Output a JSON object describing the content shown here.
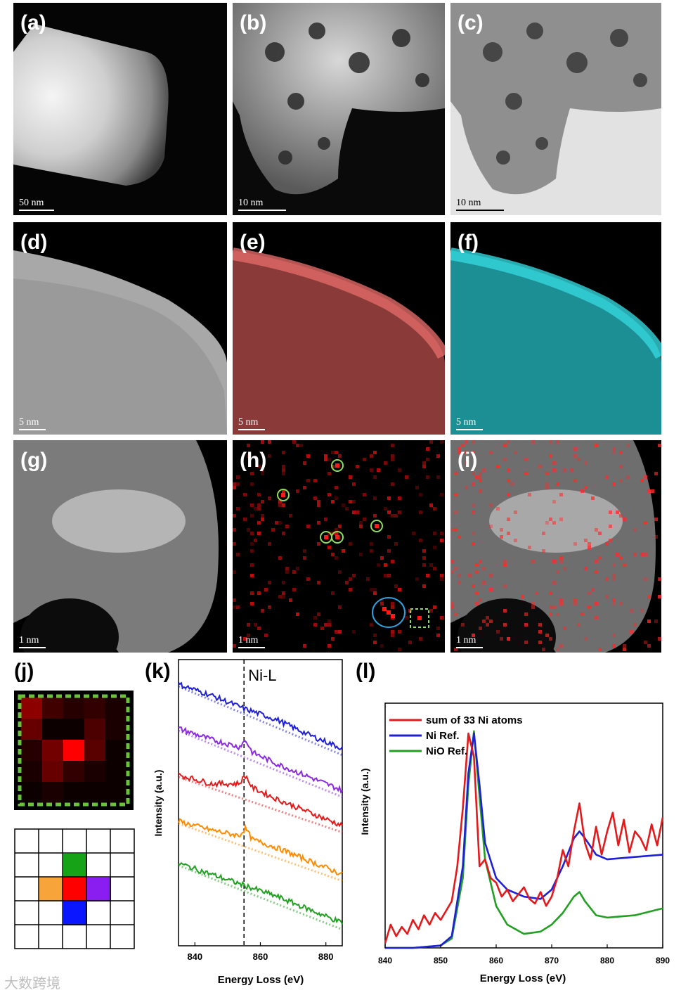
{
  "panels": {
    "a": {
      "label": "(a)",
      "scale": "50 nm"
    },
    "b": {
      "label": "(b)",
      "scale": "10 nm"
    },
    "c": {
      "label": "(c)",
      "scale": "10 nm"
    },
    "d": {
      "label": "(d)",
      "scale": "5 nm"
    },
    "e": {
      "label": "(e)",
      "scale": "5 nm"
    },
    "f": {
      "label": "(f)",
      "scale": "5 nm"
    },
    "g": {
      "label": "(g)",
      "scale": "1 nm"
    },
    "h": {
      "label": "(h)",
      "scale": "1 nm"
    },
    "i": {
      "label": "(i)",
      "scale": "1 nm"
    },
    "j": {
      "label": "(j)"
    },
    "k": {
      "label": "(k)"
    },
    "l": {
      "label": "(l)"
    }
  },
  "watermark": "大数跨境",
  "chart_data": [
    {
      "type": "line",
      "panel": "k",
      "title": "",
      "xlabel": "Energy Loss (eV)",
      "ylabel": "Intensity (a.u.)",
      "xlim": [
        835,
        885
      ],
      "xticks": [
        "840",
        "860",
        "880"
      ],
      "annotation": "Ni-L",
      "marker_x": 855,
      "series_colors": [
        "#1f1fd6",
        "#8a2be2",
        "#e31a1c",
        "#ff8c00",
        "#22a022"
      ],
      "series": [
        {
          "color": "blue",
          "x": [
            835,
            845,
            855,
            865,
            875,
            885
          ],
          "y": [
            4.6,
            4.35,
            4.05,
            3.8,
            3.45,
            3.15
          ]
        },
        {
          "color": "purple",
          "x": [
            835,
            845,
            855,
            865,
            875,
            885
          ],
          "y": [
            3.6,
            3.35,
            3.15,
            2.8,
            2.5,
            2.2
          ]
        },
        {
          "color": "red",
          "x": [
            835,
            845,
            855,
            865,
            875,
            885
          ],
          "y": [
            2.55,
            2.35,
            2.35,
            2.0,
            1.7,
            1.4
          ]
        },
        {
          "color": "orange",
          "x": [
            835,
            845,
            855,
            865,
            875,
            885
          ],
          "y": [
            1.5,
            1.3,
            1.15,
            0.9,
            0.6,
            0.3
          ]
        },
        {
          "color": "green",
          "x": [
            835,
            845,
            855,
            865,
            875,
            885
          ],
          "y": [
            0.55,
            0.3,
            0.05,
            -0.2,
            -0.5,
            -0.8
          ]
        }
      ]
    },
    {
      "type": "line",
      "panel": "l",
      "title": "",
      "xlabel": "Energy Loss (eV)",
      "ylabel": "Intensity (a.u.)",
      "xlim": [
        840,
        890
      ],
      "ylim": [
        0,
        1.05
      ],
      "xticks": [
        "840",
        "850",
        "860",
        "870",
        "880",
        "890"
      ],
      "legend_position": "top-left",
      "series": [
        {
          "name": "sum of 33 Ni atoms",
          "color": "#e31a1c",
          "x": [
            840,
            841,
            842,
            843,
            844,
            845,
            846,
            847,
            848,
            849,
            850,
            851,
            852,
            853,
            854,
            855,
            856,
            857,
            858,
            859,
            860,
            861,
            862,
            863,
            864,
            865,
            866,
            867,
            868,
            869,
            870,
            871,
            872,
            873,
            874,
            875,
            876,
            877,
            878,
            879,
            880,
            881,
            882,
            883,
            884,
            885,
            886,
            887,
            888,
            889,
            890
          ],
          "y": [
            0.02,
            0.1,
            0.05,
            0.09,
            0.06,
            0.12,
            0.08,
            0.14,
            0.1,
            0.15,
            0.12,
            0.16,
            0.2,
            0.35,
            0.6,
            0.92,
            0.82,
            0.35,
            0.38,
            0.3,
            0.28,
            0.22,
            0.25,
            0.2,
            0.23,
            0.26,
            0.21,
            0.19,
            0.24,
            0.18,
            0.22,
            0.3,
            0.42,
            0.35,
            0.5,
            0.62,
            0.45,
            0.38,
            0.52,
            0.4,
            0.5,
            0.58,
            0.44,
            0.55,
            0.41,
            0.5,
            0.47,
            0.42,
            0.53,
            0.44,
            0.56
          ]
        },
        {
          "name": "Ni Ref.",
          "color": "#1f1fd6",
          "x": [
            840,
            845,
            850,
            852,
            854,
            855,
            856,
            857,
            858,
            860,
            862,
            865,
            868,
            870,
            872,
            874,
            875,
            876,
            878,
            880,
            885,
            890
          ],
          "y": [
            0.0,
            0.0,
            0.01,
            0.05,
            0.35,
            0.75,
            0.92,
            0.7,
            0.45,
            0.3,
            0.25,
            0.22,
            0.21,
            0.25,
            0.35,
            0.47,
            0.5,
            0.47,
            0.4,
            0.38,
            0.39,
            0.4
          ]
        },
        {
          "name": "NiO Ref.",
          "color": "#22a022",
          "x": [
            840,
            845,
            850,
            852,
            854,
            855,
            856,
            857,
            858,
            860,
            862,
            865,
            868,
            870,
            872,
            874,
            875,
            876,
            878,
            880,
            885,
            890
          ],
          "y": [
            0.0,
            0.0,
            0.01,
            0.04,
            0.3,
            0.7,
            0.93,
            0.65,
            0.38,
            0.18,
            0.1,
            0.06,
            0.07,
            0.1,
            0.15,
            0.22,
            0.24,
            0.2,
            0.14,
            0.13,
            0.14,
            0.17
          ]
        }
      ]
    }
  ]
}
